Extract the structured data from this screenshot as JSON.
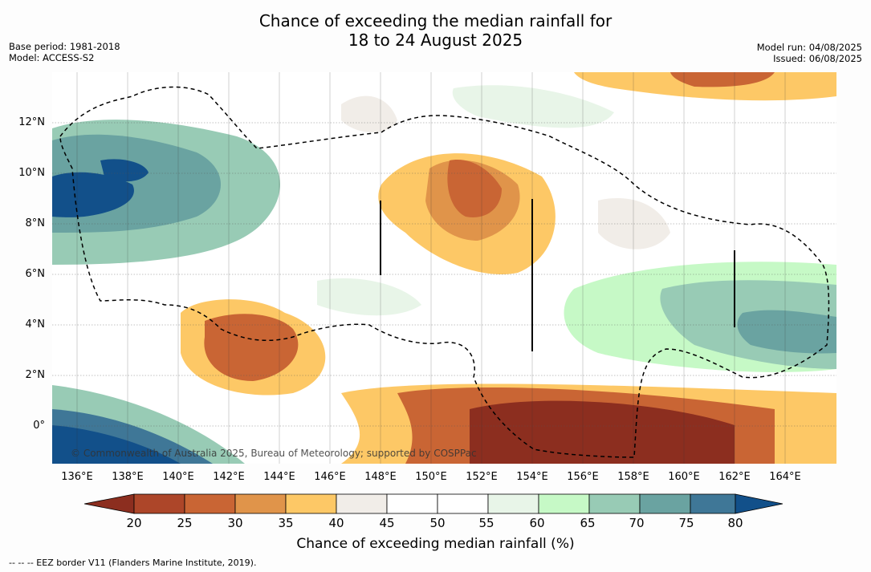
{
  "title": {
    "line1": "Chance of exceeding the median rainfall for",
    "line2": "18 to 24 August 2025"
  },
  "meta_left": {
    "base_period": "Base period: 1981-2018",
    "model": "Model: ACCESS-S2"
  },
  "meta_right": {
    "model_run": "Model run: 04/08/2025",
    "issued": "Issued: 06/08/2025"
  },
  "map": {
    "lat_labels": [
      "12°N",
      "10°N",
      "8°N",
      "6°N",
      "4°N",
      "2°N",
      "0°"
    ],
    "lon_labels": [
      "136°E",
      "138°E",
      "140°E",
      "142°E",
      "144°E",
      "146°E",
      "148°E",
      "150°E",
      "152°E",
      "154°E",
      "156°E",
      "158°E",
      "160°E",
      "162°E",
      "164°E"
    ],
    "copyright": "© Commonwealth of Australia 2025, Bureau of Meteorology; supported by COSPPac"
  },
  "colorbar": {
    "ticks": [
      "20",
      "25",
      "30",
      "35",
      "40",
      "45",
      "50",
      "55",
      "60",
      "65",
      "70",
      "75",
      "80"
    ],
    "colors": {
      "lt20": "#8c2e1f",
      "20_25": "#ad4629",
      "25_30": "#c96534",
      "30_35": "#e0944a",
      "35_40": "#fdc866",
      "40_45": "#f1ede8",
      "45_50": "#ffffff",
      "50_55": "#ffffff",
      "55_60": "#e8f5e8",
      "60_65": "#c6f9c6",
      "65_70": "#98cbb5",
      "70_75": "#6aa3a1",
      "75_80": "#3f7797",
      "gt80": "#12508a"
    },
    "label": "Chance of exceeding median rainfall (%)"
  },
  "footer": "--  --  -- EEZ border V11 (Flanders Marine Institute, 2019)."
}
